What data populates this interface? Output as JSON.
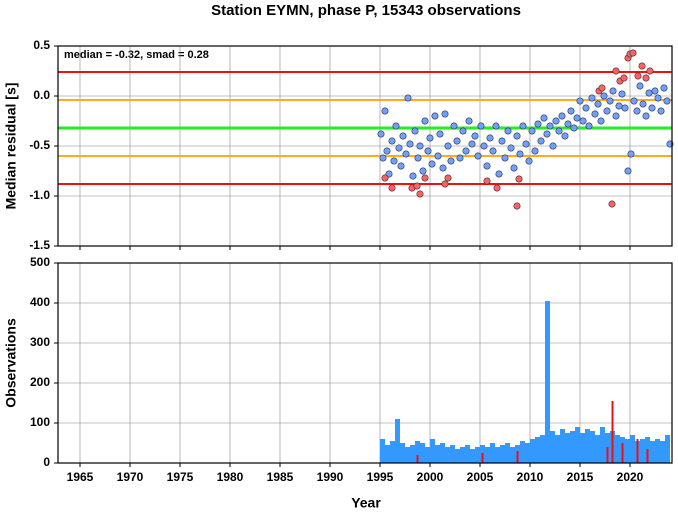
{
  "chart_data": [
    {
      "type": "scatter",
      "title": "Station EYMN, phase P, 15343 observations",
      "ylabel": "Median residual [s]",
      "annotation": "median = -0.32, smad = 0.28",
      "xlim": [
        1962.8,
        2024.2
      ],
      "xticks": [
        1965,
        1970,
        1975,
        1980,
        1985,
        1990,
        1995,
        2000,
        2005,
        2010,
        2015,
        2020
      ],
      "ylim": [
        -1.5,
        0.5
      ],
      "yticks": [
        0.5,
        {
          "value": 0,
          "label": "0.0"
        },
        -0.5,
        {
          "value": -1,
          "label": "-1.0"
        },
        -1.5
      ],
      "grid": true,
      "reference_lines": [
        {
          "value": 0.24,
          "color": "#ee1111"
        },
        {
          "value": -0.04,
          "color": "#ffaa22"
        },
        {
          "value": -0.32,
          "color": "#22ee22"
        },
        {
          "value": -0.6,
          "color": "#ffaa22"
        },
        {
          "value": -0.88,
          "color": "#ee1111"
        }
      ],
      "series": [
        {
          "color": "#6fa0ff",
          "x": [
            1995.1,
            1995.3,
            1995.5,
            1995.7,
            1995.9,
            1996.2,
            1996.4,
            1996.6,
            1996.9,
            1997.1,
            1997.3,
            1997.6,
            1997.8,
            1998.0,
            1998.3,
            1998.5,
            1998.8,
            1999.0,
            1999.3,
            1999.5,
            1999.8,
            2000.0,
            2000.2,
            2000.5,
            2000.8,
            2001.0,
            2001.3,
            2001.5,
            2001.8,
            2002.1,
            2002.4,
            2002.7,
            2003.0,
            2003.3,
            2003.6,
            2003.9,
            2004.2,
            2004.5,
            2004.8,
            2005.1,
            2005.4,
            2005.7,
            2006.0,
            2006.3,
            2006.6,
            2006.9,
            2007.2,
            2007.5,
            2007.8,
            2008.1,
            2008.4,
            2008.7,
            2009.0,
            2009.3,
            2009.6,
            2009.9,
            2010.2,
            2010.5,
            2010.8,
            2011.1,
            2011.4,
            2011.7,
            2012.0,
            2012.3,
            2012.6,
            2012.9,
            2013.2,
            2013.5,
            2013.8,
            2014.1,
            2014.4,
            2014.7,
            2015.0,
            2015.3,
            2015.6,
            2015.9,
            2016.2,
            2016.5,
            2016.8,
            2017.1,
            2017.4,
            2017.7,
            2018.0,
            2018.3,
            2018.6,
            2018.9,
            2019.2,
            2019.5,
            2019.8,
            2020.1,
            2020.4,
            2020.7,
            2021.0,
            2021.3,
            2021.6,
            2021.9,
            2022.2,
            2022.5,
            2022.8,
            2023.1,
            2023.4,
            2023.7,
            2024.0
          ],
          "values": [
            -0.38,
            -0.62,
            -0.15,
            -0.55,
            -0.78,
            -0.45,
            -0.65,
            -0.3,
            -0.52,
            -0.7,
            -0.4,
            -0.58,
            -0.02,
            -0.48,
            -0.8,
            -0.35,
            -0.62,
            -0.5,
            -0.75,
            -0.25,
            -0.55,
            -0.42,
            -0.68,
            -0.2,
            -0.6,
            -0.38,
            -0.72,
            -0.18,
            -0.5,
            -0.65,
            -0.3,
            -0.45,
            -0.62,
            -0.35,
            -0.55,
            -0.25,
            -0.48,
            -0.4,
            -0.6,
            -0.3,
            -0.5,
            -0.7,
            -0.42,
            -0.55,
            -0.3,
            -0.78,
            -0.45,
            -0.62,
            -0.35,
            -0.52,
            -0.72,
            -0.4,
            -0.58,
            -0.3,
            -0.48,
            -0.65,
            -0.35,
            -0.55,
            -0.28,
            -0.45,
            -0.22,
            -0.38,
            -0.3,
            -0.5,
            -0.25,
            -0.35,
            -0.2,
            -0.4,
            -0.28,
            -0.15,
            -0.32,
            -0.22,
            -0.05,
            -0.25,
            -0.12,
            -0.3,
            -0.02,
            -0.18,
            -0.08,
            -0.25,
            0.0,
            -0.15,
            -0.05,
            0.05,
            -0.2,
            -0.1,
            0.02,
            -0.12,
            -0.75,
            -0.58,
            -0.05,
            -0.15,
            0.1,
            -0.08,
            -0.2,
            0.03,
            -0.12,
            0.05,
            -0.02,
            -0.15,
            0.08,
            -0.05,
            -0.48
          ]
        },
        {
          "color": "#ff6060",
          "x": [
            1995.5,
            1996.2,
            1998.2,
            1998.7,
            1999.0,
            1999.5,
            2001.5,
            2001.8,
            2005.7,
            2006.7,
            2008.7,
            2008.9,
            2016.9,
            2017.2,
            2018.2,
            2018.6,
            2019.0,
            2019.4,
            2019.8,
            2020.0,
            2020.3,
            2020.8,
            2021.2,
            2021.6,
            2022.0
          ],
          "values": [
            -0.82,
            -0.92,
            -0.92,
            -0.9,
            -0.98,
            -0.82,
            -0.88,
            -0.82,
            -0.85,
            -0.92,
            -1.1,
            -0.83,
            0.05,
            0.08,
            -1.08,
            0.25,
            0.15,
            0.18,
            0.38,
            0.42,
            0.43,
            0.2,
            0.3,
            0.18,
            0.25
          ]
        }
      ]
    },
    {
      "type": "histogram",
      "ylabel": "Observations",
      "xlabel": "Year",
      "xlim": [
        1962.8,
        2024.2
      ],
      "xticks": [
        1965,
        1970,
        1975,
        1980,
        1985,
        1990,
        1995,
        2000,
        2005,
        2010,
        2015,
        2020
      ],
      "ylim": [
        0,
        500
      ],
      "yticks": [
        0,
        100,
        200,
        300,
        400,
        500
      ],
      "grid": true,
      "bins": [
        1995,
        1995.5,
        1996,
        1996.5,
        1997,
        1997.5,
        1998,
        1998.5,
        1999,
        1999.5,
        2000,
        2000.5,
        2001,
        2001.5,
        2002,
        2002.5,
        2003,
        2003.5,
        2004,
        2004.5,
        2005,
        2005.5,
        2006,
        2006.5,
        2007,
        2007.5,
        2008,
        2008.5,
        2009,
        2009.5,
        2010,
        2010.5,
        2011,
        2011.5,
        2012,
        2012.5,
        2013,
        2013.5,
        2014,
        2014.5,
        2015,
        2015.5,
        2016,
        2016.5,
        2017,
        2017.5,
        2018,
        2018.5,
        2019,
        2019.5,
        2020,
        2020.5,
        2021,
        2021.5,
        2022,
        2022.5,
        2023,
        2023.5,
        2024
      ],
      "series": [
        {
          "color": "#3399ff",
          "values": [
            60,
            45,
            55,
            110,
            50,
            40,
            45,
            55,
            50,
            40,
            60,
            45,
            50,
            40,
            45,
            35,
            40,
            45,
            35,
            40,
            45,
            40,
            50,
            40,
            45,
            50,
            40,
            45,
            55,
            50,
            60,
            65,
            70,
            405,
            80,
            70,
            85,
            75,
            80,
            90,
            75,
            85,
            80,
            70,
            90,
            75,
            80,
            70,
            65,
            60,
            70,
            55,
            60,
            65,
            55,
            60,
            55,
            70
          ]
        },
        {
          "color": "#ee1111",
          "values": [
            0,
            0,
            0,
            0,
            0,
            0,
            0,
            20,
            0,
            0,
            0,
            0,
            0,
            0,
            0,
            0,
            0,
            0,
            0,
            0,
            25,
            0,
            0,
            0,
            0,
            0,
            0,
            30,
            0,
            0,
            0,
            0,
            0,
            0,
            0,
            0,
            0,
            0,
            0,
            0,
            0,
            0,
            0,
            0,
            0,
            40,
            155,
            0,
            50,
            0,
            0,
            60,
            0,
            35,
            0,
            0,
            0,
            0
          ]
        }
      ]
    }
  ]
}
